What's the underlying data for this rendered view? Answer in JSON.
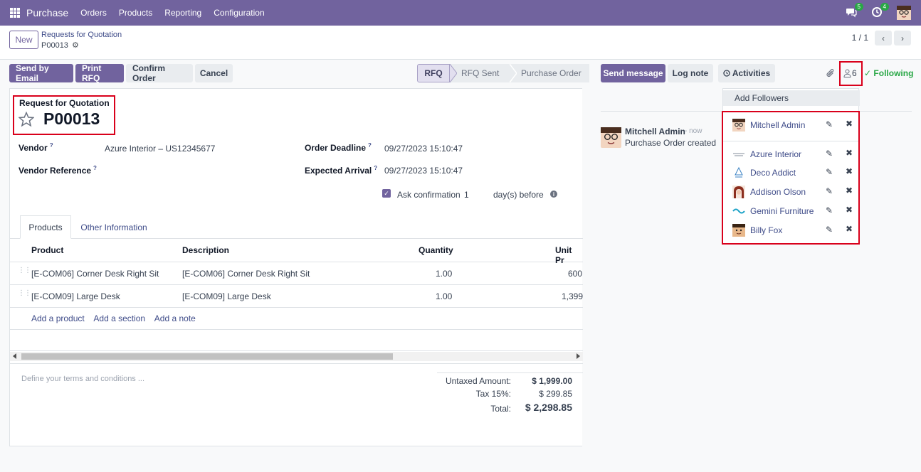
{
  "navbar": {
    "brand": "Purchase",
    "menu": [
      "Orders",
      "Products",
      "Reporting",
      "Configuration"
    ],
    "messages_count": "5",
    "activities_count": "4",
    "accent": "#71639e"
  },
  "control": {
    "new_label": "New",
    "breadcrumb_parent": "Requests for Quotation",
    "breadcrumb_current": "P00013",
    "pager": "1 / 1"
  },
  "actions": {
    "send_email": "Send by Email",
    "print_rfq": "Print RFQ",
    "confirm": "Confirm Order",
    "cancel": "Cancel"
  },
  "stages": [
    "RFQ",
    "RFQ Sent",
    "Purchase Order"
  ],
  "form": {
    "title_label": "Request for Quotation",
    "title_value": "P00013",
    "vendor_label": "Vendor",
    "vendor_value": "Azure Interior – US12345677",
    "vendor_ref_label": "Vendor Reference",
    "order_deadline_label": "Order Deadline",
    "order_deadline_value": "09/27/2023 15:10:47",
    "expected_arrival_label": "Expected Arrival",
    "expected_arrival_value": "09/27/2023 15:10:47",
    "ask_confirmation_label": "Ask confirmation",
    "ask_confirmation_days": "1",
    "days_before": "day(s) before",
    "help_mark": "?"
  },
  "tabs": [
    "Products",
    "Other Information"
  ],
  "table": {
    "headers": [
      "Product",
      "Description",
      "Quantity",
      "Unit Pr"
    ],
    "rows": [
      {
        "product": "[E-COM06] Corner Desk Right Sit",
        "description": "[E-COM06] Corner Desk Right Sit",
        "quantity": "1.00",
        "unit_price": "600"
      },
      {
        "product": "[E-COM09] Large Desk",
        "description": "[E-COM09] Large Desk",
        "quantity": "1.00",
        "unit_price": "1,399"
      }
    ],
    "add_product": "Add a product",
    "add_section": "Add a section",
    "add_note": "Add a note"
  },
  "terms_placeholder": "Define your terms and conditions ...",
  "totals": {
    "untaxed_label": "Untaxed Amount:",
    "untaxed_value": "$ 1,999.00",
    "tax_label": "Tax 15%:",
    "tax_value": "$ 299.85",
    "total_label": "Total:",
    "total_value": "$ 2,298.85"
  },
  "chatter": {
    "send_message": "Send message",
    "log_note": "Log note",
    "activities": "Activities",
    "follower_count": "6",
    "following": "Following",
    "add_followers": "Add Followers",
    "followers": [
      {
        "name": "Mitchell Admin"
      },
      {
        "name": "Azure Interior"
      },
      {
        "name": "Deco Addict"
      },
      {
        "name": "Addison Olson"
      },
      {
        "name": "Gemini Furniture"
      },
      {
        "name": "Billy Fox"
      }
    ],
    "message": {
      "author": "Mitchell Admin",
      "time": "- now",
      "body": "Purchase Order created"
    }
  }
}
